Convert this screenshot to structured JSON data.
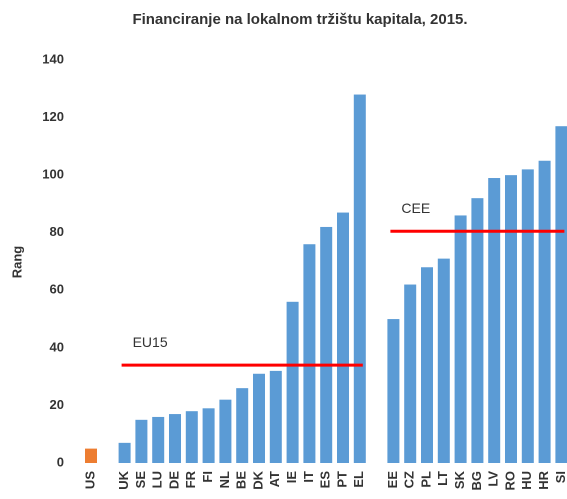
{
  "chart_data": {
    "type": "bar",
    "title": "Financiranje na lokalnom tržištu kapitala, 2015.",
    "y_label": "Rang",
    "categories": [
      "US",
      null,
      "UK",
      "SE",
      "LU",
      "DE",
      "FR",
      "FI",
      "NL",
      "BE",
      "DK",
      "AT",
      "IE",
      "IT",
      "ES",
      "PT",
      "EL",
      null,
      "EE",
      "CZ",
      "PL",
      "LT",
      "SK",
      "BG",
      "LV",
      "RO",
      "HU",
      "HR",
      "SI"
    ],
    "values": [
      5,
      null,
      7,
      15,
      16,
      17,
      18,
      19,
      22,
      26,
      31,
      32,
      56,
      76,
      82,
      87,
      128,
      null,
      50,
      62,
      68,
      71,
      86,
      92,
      99,
      100,
      102,
      105,
      117
    ],
    "colors": [
      "#ed7d31",
      null,
      "#5b9bd5",
      "#5b9bd5",
      "#5b9bd5",
      "#5b9bd5",
      "#5b9bd5",
      "#5b9bd5",
      "#5b9bd5",
      "#5b9bd5",
      "#5b9bd5",
      "#5b9bd5",
      "#5b9bd5",
      "#5b9bd5",
      "#5b9bd5",
      "#5b9bd5",
      "#5b9bd5",
      null,
      "#5b9bd5",
      "#5b9bd5",
      "#5b9bd5",
      "#5b9bd5",
      "#5b9bd5",
      "#5b9bd5",
      "#5b9bd5",
      "#5b9bd5",
      "#5b9bd5",
      "#5b9bd5",
      "#5b9bd5"
    ],
    "ylim": [
      0,
      140
    ],
    "yticks": [
      0,
      20,
      40,
      60,
      80,
      100,
      120,
      140
    ],
    "grid": false,
    "reference_lines": [
      {
        "label": "EU15",
        "value": 34,
        "from": "UK",
        "to": "EL",
        "color": "#ff0000"
      },
      {
        "label": "CEE",
        "value": 80.5,
        "from": "EE",
        "to": "SI",
        "color": "#ff0000"
      }
    ]
  }
}
